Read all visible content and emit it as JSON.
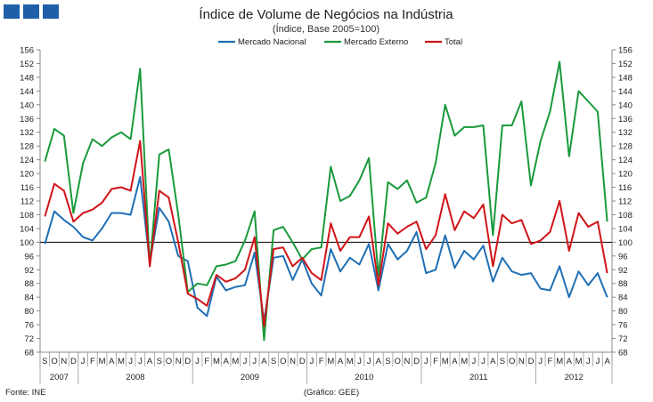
{
  "header": {
    "title": "Índice de Volume de Negócios na Indústria",
    "subtitle": "(Índice, Base 2005=100)"
  },
  "footer": {
    "source": "Fonte: INE",
    "credit": "(Gráfico: GEE)"
  },
  "colors": {
    "logo": "#1f5fa8",
    "nacional": "#1f6fb5",
    "externo": "#1a9a3c",
    "total": "#d01418",
    "reference_line": "#000000",
    "axis": "#888888"
  },
  "chart_data": {
    "type": "line",
    "title": "Índice de Volume de Negócios na Indústria",
    "subtitle": "(Índice, Base 2005=100)",
    "xlabel": "",
    "ylabel": "",
    "ylim": [
      68,
      156
    ],
    "yticks": [
      68,
      72,
      76,
      80,
      84,
      88,
      92,
      96,
      100,
      104,
      108,
      112,
      116,
      120,
      124,
      128,
      132,
      136,
      140,
      144,
      148,
      152,
      156
    ],
    "reference_line": 100,
    "grid": false,
    "legend_position": "top-center",
    "categories": [
      "S",
      "O",
      "N",
      "D",
      "J",
      "F",
      "M",
      "A",
      "M",
      "J",
      "J",
      "A",
      "S",
      "O",
      "N",
      "D",
      "J",
      "F",
      "M",
      "A",
      "M",
      "J",
      "J",
      "A",
      "S",
      "O",
      "N",
      "D",
      "J",
      "F",
      "M",
      "A",
      "M",
      "J",
      "J",
      "A",
      "S",
      "O",
      "N",
      "D",
      "J",
      "F",
      "M",
      "A",
      "M",
      "J",
      "J",
      "A",
      "S",
      "O",
      "N",
      "D",
      "J",
      "F",
      "M",
      "A",
      "M",
      "J",
      "J",
      "A"
    ],
    "years": [
      {
        "label": "2007",
        "start": 0,
        "count": 4
      },
      {
        "label": "2008",
        "start": 4,
        "count": 12
      },
      {
        "label": "2009",
        "start": 16,
        "count": 12
      },
      {
        "label": "2010",
        "start": 28,
        "count": 12
      },
      {
        "label": "2011",
        "start": 40,
        "count": 12
      },
      {
        "label": "2012",
        "start": 52,
        "count": 8
      }
    ],
    "series": [
      {
        "name": "Mercado Nacional",
        "color": "#1f6fb5",
        "values": [
          99.5,
          109,
          106.5,
          104.5,
          101.5,
          100.5,
          104,
          108.5,
          108.5,
          108,
          119,
          94,
          110,
          106,
          96,
          94.5,
          81,
          78.5,
          90,
          86,
          87,
          87.5,
          97,
          77,
          95.5,
          96,
          89,
          95,
          88,
          84.5,
          98,
          91.5,
          95.5,
          93.5,
          99.5,
          86,
          99.5,
          95,
          97.5,
          103,
          91,
          92,
          102,
          92.5,
          97.5,
          95,
          99,
          88.5,
          95.5,
          91.5,
          90.5,
          91,
          86.5,
          86,
          93,
          84,
          91.5,
          87.5,
          91,
          84
        ]
      },
      {
        "name": "Mercado Externo",
        "color": "#1a9a3c",
        "values": [
          123.5,
          133,
          131,
          108.5,
          123,
          130,
          128,
          130.5,
          132,
          130,
          150.5,
          93,
          125.5,
          127,
          108,
          85.5,
          88,
          87.5,
          93,
          93.5,
          94.5,
          100.5,
          109,
          71.5,
          103.5,
          104.5,
          100,
          95,
          98,
          98.5,
          122,
          112,
          113.5,
          118,
          124.5,
          90,
          117.5,
          115.5,
          118,
          111.5,
          113,
          123,
          140,
          131,
          133.5,
          133.5,
          134,
          102,
          134,
          134,
          141,
          116.5,
          129.5,
          138,
          152.5,
          125,
          144,
          141,
          138,
          106
        ]
      },
      {
        "name": "Total",
        "color": "#d01418",
        "values": [
          107.5,
          117,
          115,
          106,
          108.5,
          109.5,
          111.5,
          115.5,
          116,
          115,
          129.5,
          93,
          115,
          113,
          100,
          85,
          83.5,
          81.5,
          90.5,
          88.5,
          89.5,
          92,
          101.5,
          75.5,
          98,
          98.5,
          93,
          95.5,
          91,
          89,
          105.5,
          97.5,
          101.5,
          101.5,
          107.5,
          87.5,
          105.5,
          102.5,
          104.5,
          106,
          98,
          102,
          114,
          103.5,
          109,
          107,
          111,
          93,
          108,
          105.5,
          106.5,
          99.5,
          100.5,
          103,
          112,
          97.5,
          108.5,
          104.5,
          106,
          91
        ]
      }
    ]
  }
}
